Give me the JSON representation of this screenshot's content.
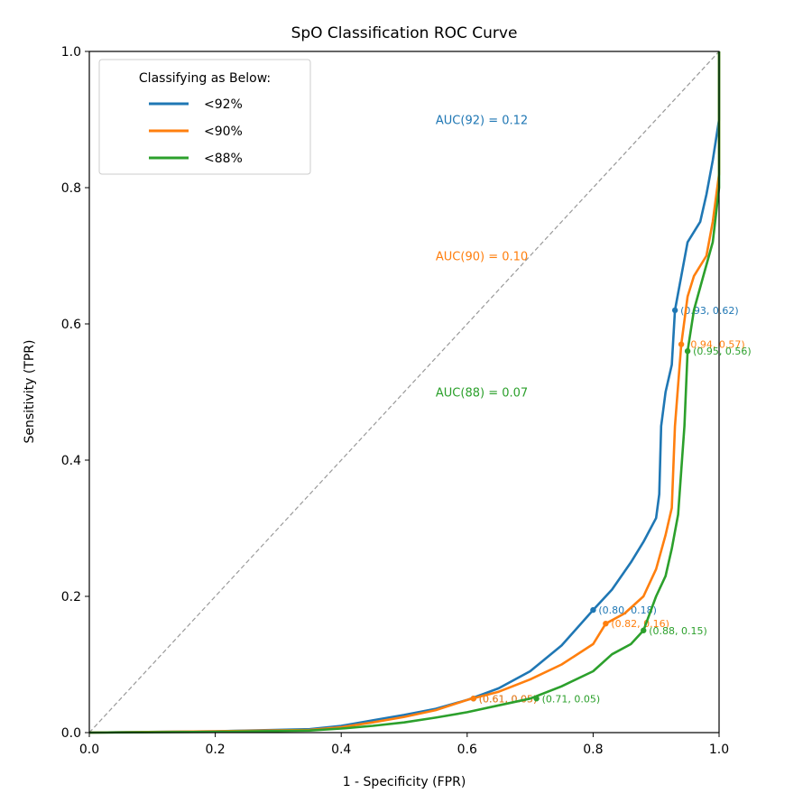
{
  "chart_data": {
    "type": "line",
    "title": "SpO Classification ROC Curve",
    "xlabel": "1 - Specificity (FPR)",
    "ylabel": "Sensitivity (TPR)",
    "xlim": [
      0.0,
      1.0
    ],
    "ylim": [
      0.0,
      1.0
    ],
    "xticks": [
      "0.0",
      "0.2",
      "0.4",
      "0.6",
      "0.8",
      "1.0"
    ],
    "yticks": [
      "0.0",
      "0.2",
      "0.4",
      "0.6",
      "0.8",
      "1.0"
    ],
    "grid": false,
    "legend": {
      "title": "Classifying as Below:",
      "position": "top-left"
    },
    "diagonal": {
      "style": "dashed",
      "color": "#999999"
    },
    "series": [
      {
        "name": "<92%",
        "color": "#1f77b4",
        "auc_label": "AUC(92) = 0.12",
        "points": [
          [
            0.0,
            0.0
          ],
          [
            0.2,
            0.002
          ],
          [
            0.35,
            0.005
          ],
          [
            0.4,
            0.01
          ],
          [
            0.45,
            0.018
          ],
          [
            0.5,
            0.026
          ],
          [
            0.55,
            0.035
          ],
          [
            0.6,
            0.048
          ],
          [
            0.65,
            0.065
          ],
          [
            0.7,
            0.09
          ],
          [
            0.75,
            0.128
          ],
          [
            0.8,
            0.18
          ],
          [
            0.83,
            0.21
          ],
          [
            0.86,
            0.25
          ],
          [
            0.88,
            0.28
          ],
          [
            0.9,
            0.315
          ],
          [
            0.905,
            0.35
          ],
          [
            0.908,
            0.45
          ],
          [
            0.915,
            0.5
          ],
          [
            0.925,
            0.54
          ],
          [
            0.93,
            0.62
          ],
          [
            0.94,
            0.67
          ],
          [
            0.95,
            0.72
          ],
          [
            0.97,
            0.75
          ],
          [
            0.98,
            0.79
          ],
          [
            0.99,
            0.84
          ],
          [
            1.0,
            0.9
          ],
          [
            1.0,
            1.0
          ]
        ],
        "marked_points": [
          [
            0.61,
            0.05
          ],
          [
            0.8,
            0.18
          ],
          [
            0.93,
            0.62
          ]
        ],
        "marked_labels": [
          "(0.61, 0.05)",
          "(0.80, 0.18)",
          "(0.93, 0.62)"
        ]
      },
      {
        "name": "<90%",
        "color": "#ff7f0e",
        "auc_label": "AUC(90) = 0.10",
        "points": [
          [
            0.0,
            0.0
          ],
          [
            0.2,
            0.002
          ],
          [
            0.35,
            0.004
          ],
          [
            0.4,
            0.008
          ],
          [
            0.45,
            0.015
          ],
          [
            0.5,
            0.023
          ],
          [
            0.55,
            0.033
          ],
          [
            0.6,
            0.048
          ],
          [
            0.65,
            0.06
          ],
          [
            0.7,
            0.078
          ],
          [
            0.75,
            0.1
          ],
          [
            0.8,
            0.13
          ],
          [
            0.82,
            0.16
          ],
          [
            0.85,
            0.175
          ],
          [
            0.88,
            0.2
          ],
          [
            0.9,
            0.24
          ],
          [
            0.915,
            0.29
          ],
          [
            0.925,
            0.33
          ],
          [
            0.93,
            0.45
          ],
          [
            0.94,
            0.57
          ],
          [
            0.95,
            0.64
          ],
          [
            0.96,
            0.67
          ],
          [
            0.98,
            0.7
          ],
          [
            0.99,
            0.75
          ],
          [
            1.0,
            0.82
          ],
          [
            1.0,
            1.0
          ]
        ],
        "marked_points": [
          [
            0.61,
            0.05
          ],
          [
            0.82,
            0.16
          ],
          [
            0.94,
            0.57
          ]
        ],
        "marked_labels": [
          "(0.61, 0.05)",
          "(0.82, 0.16)",
          "(0.94, 0.57)"
        ]
      },
      {
        "name": "<88%",
        "color": "#2ca02c",
        "auc_label": "AUC(88) = 0.07",
        "points": [
          [
            0.0,
            0.0
          ],
          [
            0.2,
            0.001
          ],
          [
            0.35,
            0.003
          ],
          [
            0.4,
            0.006
          ],
          [
            0.45,
            0.01
          ],
          [
            0.5,
            0.015
          ],
          [
            0.55,
            0.022
          ],
          [
            0.6,
            0.03
          ],
          [
            0.65,
            0.04
          ],
          [
            0.7,
            0.05
          ],
          [
            0.75,
            0.068
          ],
          [
            0.8,
            0.09
          ],
          [
            0.83,
            0.115
          ],
          [
            0.86,
            0.13
          ],
          [
            0.88,
            0.15
          ],
          [
            0.9,
            0.2
          ],
          [
            0.915,
            0.23
          ],
          [
            0.925,
            0.27
          ],
          [
            0.935,
            0.32
          ],
          [
            0.945,
            0.45
          ],
          [
            0.95,
            0.56
          ],
          [
            0.96,
            0.62
          ],
          [
            0.975,
            0.67
          ],
          [
            0.99,
            0.72
          ],
          [
            1.0,
            0.8
          ],
          [
            1.0,
            1.0
          ]
        ],
        "marked_points": [
          [
            0.71,
            0.05
          ],
          [
            0.88,
            0.15
          ],
          [
            0.95,
            0.56
          ]
        ],
        "marked_labels": [
          "(0.71, 0.05)",
          "(0.88, 0.15)",
          "(0.95, 0.56)"
        ]
      }
    ]
  }
}
